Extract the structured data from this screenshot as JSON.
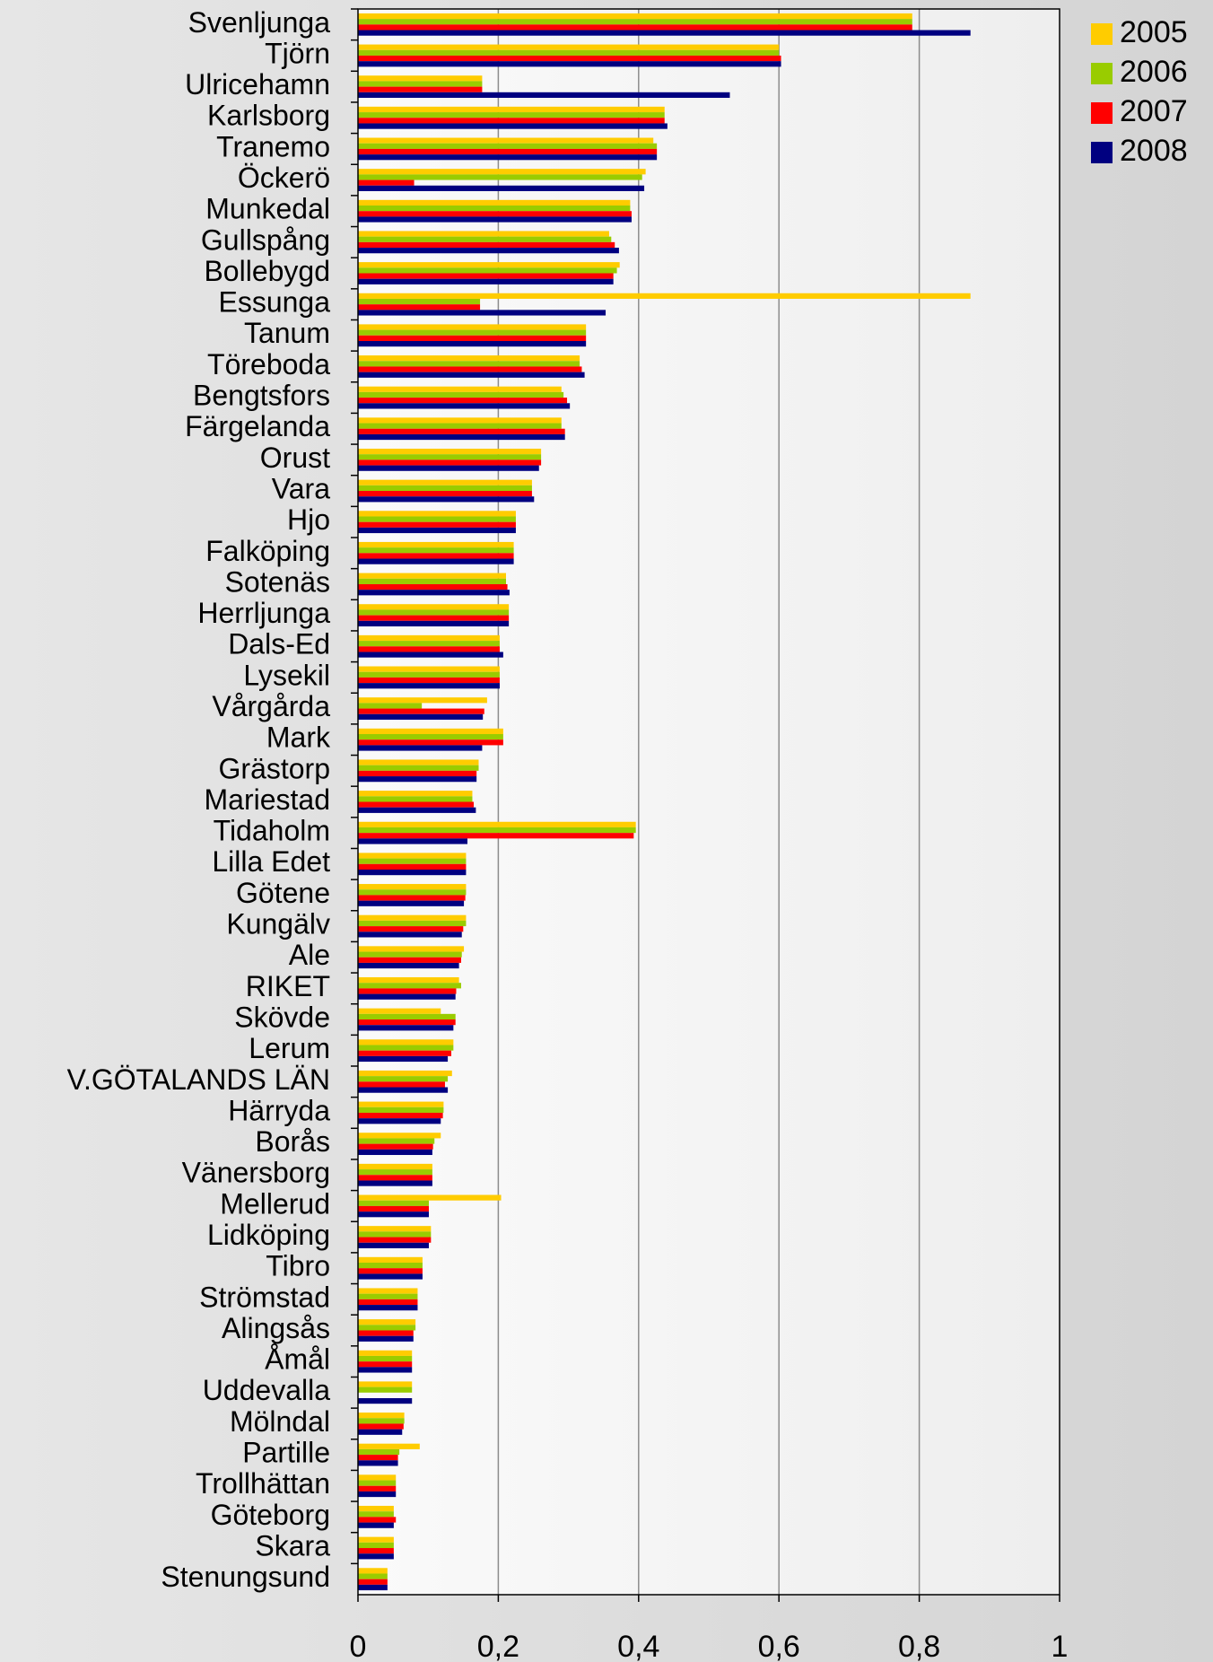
{
  "chart_data": {
    "type": "barh",
    "categories": [
      "Svenljunga",
      "Tjörn",
      "Ulricehamn",
      "Karlsborg",
      "Tranemo",
      "Öckerö",
      "Munkedal",
      "Gullspång",
      "Bollebygd",
      "Essunga",
      "Tanum",
      "Töreboda",
      "Bengtsfors",
      "Färgelanda",
      "Orust",
      "Vara",
      "Hjo",
      "Falköping",
      "Sotenäs",
      "Herrljunga",
      "Dals-Ed",
      "Lysekil",
      "Vårgårda",
      "Mark",
      "Grästorp",
      "Mariestad",
      "Tidaholm",
      "Lilla Edet",
      "Götene",
      "Kungälv",
      "Ale",
      "RIKET",
      "Skövde",
      "Lerum",
      "V.GÖTALANDS LÄN",
      "Härryda",
      "Borås",
      "Vänersborg",
      "Mellerud",
      "Lidköping",
      "Tibro",
      "Strömstad",
      "Alingsås",
      "Åmål",
      "Uddevalla",
      "Mölndal",
      "Partille",
      "Trollhättan",
      "Göteborg",
      "Skara",
      "Stenungsund"
    ],
    "series": [
      {
        "name": "2005",
        "color": "#ffcc00",
        "values": [
          0.79,
          0.6,
          0.177,
          0.437,
          0.421,
          0.41,
          0.388,
          0.358,
          0.373,
          0.873,
          0.325,
          0.316,
          0.29,
          0.29,
          0.261,
          0.248,
          0.225,
          0.222,
          0.211,
          0.215,
          0.202,
          0.202,
          0.184,
          0.207,
          0.172,
          0.163,
          0.396,
          0.154,
          0.154,
          0.154,
          0.151,
          0.144,
          0.118,
          0.136,
          0.134,
          0.122,
          0.118,
          0.106,
          0.204,
          0.104,
          0.092,
          0.085,
          0.082,
          0.077,
          0.077,
          0.066,
          0.088,
          0.054,
          0.051,
          0.051,
          0.042
        ]
      },
      {
        "name": "2006",
        "color": "#99cc00",
        "values": [
          0.79,
          0.6,
          0.177,
          0.437,
          0.426,
          0.405,
          0.388,
          0.361,
          0.369,
          0.174,
          0.325,
          0.316,
          0.293,
          0.29,
          0.261,
          0.248,
          0.225,
          0.222,
          0.211,
          0.215,
          0.202,
          0.202,
          0.091,
          0.207,
          0.172,
          0.163,
          0.396,
          0.154,
          0.154,
          0.154,
          0.148,
          0.147,
          0.139,
          0.136,
          0.128,
          0.122,
          0.109,
          0.106,
          0.101,
          0.104,
          0.092,
          0.085,
          0.082,
          0.077,
          0.077,
          0.066,
          0.059,
          0.054,
          0.051,
          0.051,
          0.042
        ]
      },
      {
        "name": "2007",
        "color": "#ff0000",
        "values": [
          0.79,
          0.603,
          0.177,
          0.437,
          0.426,
          0.08,
          0.39,
          0.366,
          0.364,
          0.174,
          0.325,
          0.319,
          0.298,
          0.295,
          0.261,
          0.248,
          0.225,
          0.222,
          0.213,
          0.215,
          0.202,
          0.202,
          0.18,
          0.207,
          0.169,
          0.165,
          0.393,
          0.154,
          0.153,
          0.15,
          0.147,
          0.14,
          0.139,
          0.133,
          0.124,
          0.121,
          0.107,
          0.106,
          0.101,
          0.104,
          0.092,
          0.085,
          0.079,
          0.077,
          null,
          0.065,
          0.057,
          0.054,
          0.054,
          0.051,
          0.042
        ]
      },
      {
        "name": "2008",
        "color": "#000080",
        "values": [
          0.873,
          0.603,
          0.53,
          0.441,
          0.426,
          0.408,
          0.39,
          0.372,
          0.364,
          0.353,
          0.325,
          0.323,
          0.302,
          0.295,
          0.258,
          0.251,
          0.225,
          0.222,
          0.216,
          0.215,
          0.207,
          0.202,
          0.178,
          0.177,
          0.169,
          0.168,
          0.156,
          0.154,
          0.151,
          0.148,
          0.144,
          0.139,
          0.136,
          0.128,
          0.128,
          0.118,
          0.106,
          0.106,
          0.101,
          0.101,
          0.092,
          0.085,
          0.079,
          0.077,
          0.077,
          0.063,
          0.057,
          0.054,
          0.051,
          0.051,
          0.042
        ]
      }
    ],
    "xlim": [
      0,
      1
    ],
    "xticks": [
      0,
      {
        "value": 0.2,
        "label": "0,2"
      },
      {
        "value": 0.4,
        "label": "0,4"
      },
      {
        "value": 0.6,
        "label": "0,6"
      },
      {
        "value": 0.8,
        "label": "0,8"
      },
      1
    ],
    "grid": true,
    "legend": "top-right"
  }
}
